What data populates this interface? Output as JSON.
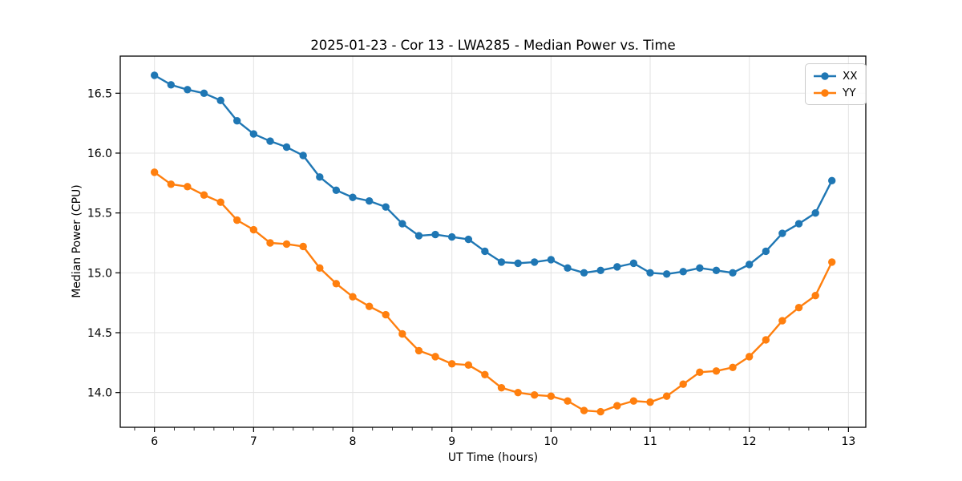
{
  "chart_data": {
    "type": "line",
    "title": "2025-01-23 - Cor 13 - LWA285 - Median Power vs. Time",
    "xlabel": "UT Time (hours)",
    "ylabel": "Median Power (CPU)",
    "xlim": [
      5.655,
      13.175
    ],
    "ylim": [
      13.71,
      16.81
    ],
    "x_ticks": [
      6,
      7,
      8,
      9,
      10,
      11,
      12,
      13
    ],
    "x_tick_labels": [
      "6",
      "7",
      "8",
      "9",
      "10",
      "11",
      "12",
      "13"
    ],
    "x_minor_tick_step": 0.2,
    "y_ticks": [
      14.0,
      14.5,
      15.0,
      15.5,
      16.0,
      16.5
    ],
    "y_tick_labels": [
      "14.0",
      "14.5",
      "15.0",
      "15.5",
      "16.0",
      "16.5"
    ],
    "grid": true,
    "grid_color": "#e3e3e3",
    "legend_position": "upper right",
    "x": [
      6.0,
      6.167,
      6.333,
      6.5,
      6.667,
      6.833,
      7.0,
      7.167,
      7.333,
      7.5,
      7.667,
      7.833,
      8.0,
      8.167,
      8.333,
      8.5,
      8.667,
      8.833,
      9.0,
      9.167,
      9.333,
      9.5,
      9.667,
      9.833,
      10.0,
      10.167,
      10.333,
      10.5,
      10.667,
      10.833,
      11.0,
      11.167,
      11.333,
      11.5,
      11.667,
      11.833,
      12.0,
      12.167,
      12.333,
      12.5,
      12.667,
      12.833
    ],
    "series": [
      {
        "name": "XX",
        "color": "#1f77b4",
        "values": [
          16.65,
          16.57,
          16.53,
          16.5,
          16.44,
          16.27,
          16.16,
          16.1,
          16.05,
          15.98,
          15.8,
          15.69,
          15.63,
          15.6,
          15.55,
          15.41,
          15.31,
          15.32,
          15.3,
          15.28,
          15.18,
          15.09,
          15.08,
          15.09,
          15.11,
          15.04,
          15.0,
          15.02,
          15.05,
          15.08,
          15.0,
          14.99,
          15.01,
          15.04,
          15.02,
          15.0,
          15.07,
          15.18,
          15.33,
          15.41,
          15.5,
          15.77
        ]
      },
      {
        "name": "YY",
        "color": "#ff7f0e",
        "values": [
          15.84,
          15.74,
          15.72,
          15.65,
          15.59,
          15.44,
          15.36,
          15.25,
          15.24,
          15.22,
          15.04,
          14.91,
          14.8,
          14.72,
          14.65,
          14.49,
          14.35,
          14.3,
          14.24,
          14.23,
          14.15,
          14.04,
          14.0,
          13.98,
          13.97,
          13.93,
          13.85,
          13.84,
          13.89,
          13.93,
          13.92,
          13.97,
          14.07,
          14.17,
          14.18,
          14.21,
          14.3,
          14.44,
          14.6,
          14.71,
          14.81,
          15.09
        ]
      }
    ]
  }
}
